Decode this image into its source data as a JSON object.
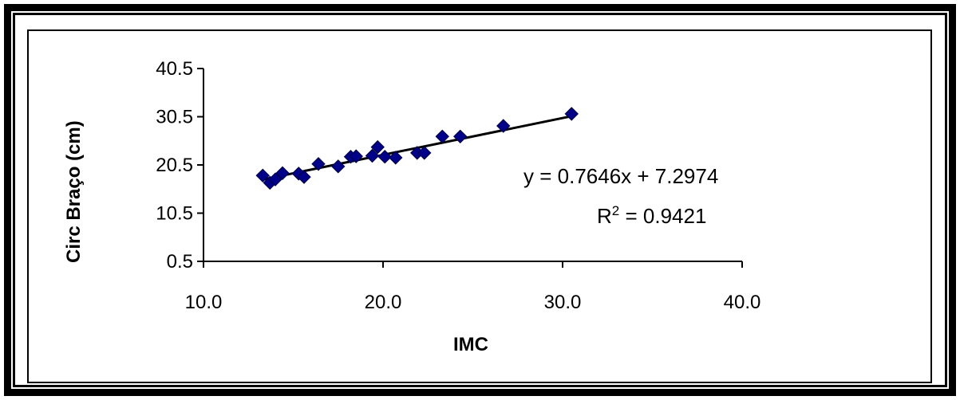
{
  "chart_data": {
    "type": "scatter",
    "xlabel": "IMC",
    "ylabel": "Circ Braço (cm)",
    "xlim": [
      10.0,
      40.0
    ],
    "ylim": [
      0.5,
      40.5
    ],
    "x_ticks": [
      "10.0",
      "20.0",
      "30.0",
      "40.0"
    ],
    "y_ticks": [
      "0.5",
      "10.5",
      "20.5",
      "30.5",
      "40.5"
    ],
    "grid": false,
    "marker": "diamond",
    "marker_color": "#00008B",
    "series": [
      {
        "points": [
          [
            13.3,
            18.3
          ],
          [
            13.7,
            16.8
          ],
          [
            14.0,
            17.5
          ],
          [
            14.4,
            18.8
          ],
          [
            15.3,
            18.7
          ],
          [
            15.6,
            18.0
          ],
          [
            16.4,
            20.7
          ],
          [
            17.5,
            20.2
          ],
          [
            18.2,
            22.2
          ],
          [
            18.5,
            22.3
          ],
          [
            19.4,
            22.4
          ],
          [
            19.7,
            24.2
          ],
          [
            20.1,
            22.2
          ],
          [
            20.7,
            22.0
          ],
          [
            21.9,
            23.0
          ],
          [
            22.3,
            23.0
          ],
          [
            23.3,
            26.4
          ],
          [
            24.3,
            26.4
          ],
          [
            26.7,
            28.6
          ],
          [
            30.5,
            31.1
          ]
        ]
      }
    ],
    "trendline": {
      "type": "linear",
      "slope": 0.7646,
      "intercept": 7.2974,
      "x_range": [
        13.3,
        30.5
      ],
      "color": "#000000",
      "equation_label": "y = 0.7646x + 7.2974",
      "r2_prefix": "R",
      "r2_sup": "2",
      "r2_value": " = 0.9421"
    }
  }
}
